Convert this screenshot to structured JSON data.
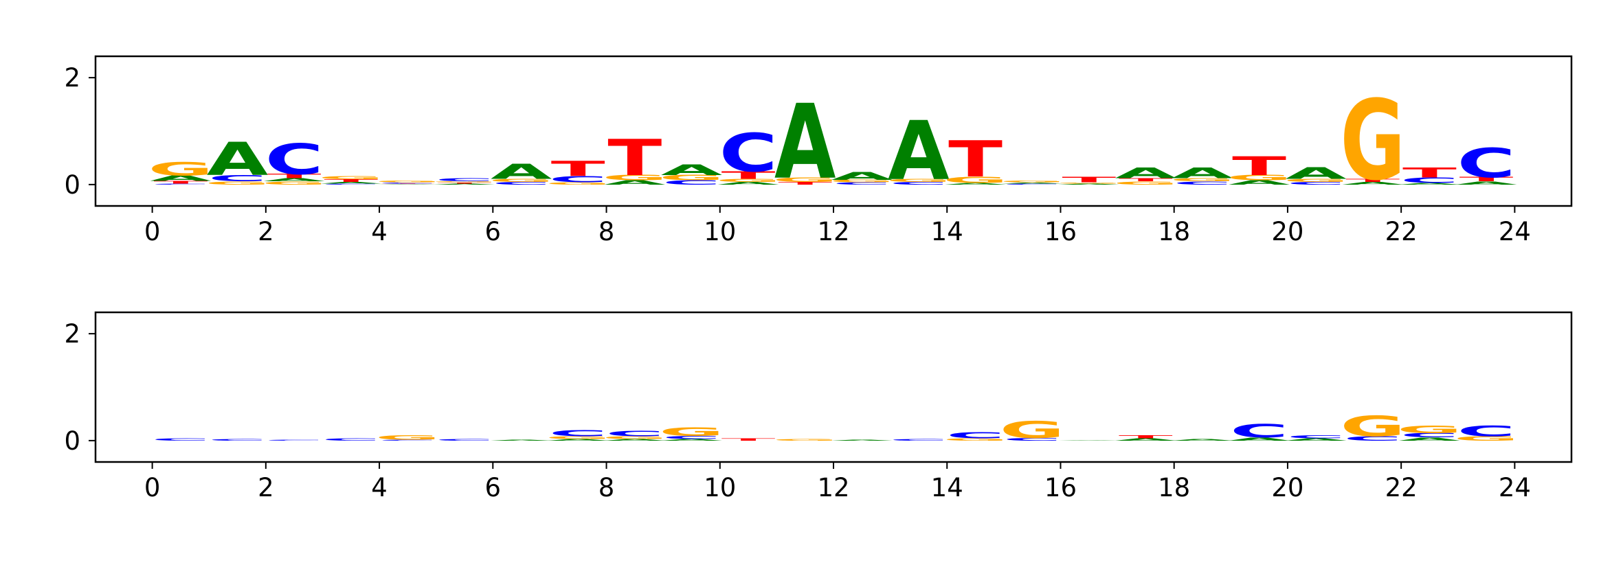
{
  "colors": {
    "A": "#008000",
    "C": "#0000ff",
    "G": "#ffa500",
    "T": "#ff0000"
  },
  "chart_data": [
    {
      "type": "sequence-logo",
      "x_ticks": [
        0,
        2,
        4,
        6,
        8,
        10,
        12,
        14,
        16,
        18,
        20,
        22,
        24
      ],
      "y_ticks": [
        0,
        2
      ],
      "xlim": [
        -1,
        25
      ],
      "ylim": [
        -0.4,
        2.4
      ],
      "grid": false,
      "positions": [
        {
          "x": 0.5,
          "letters": [
            [
              "C",
              0.02
            ],
            [
              "T",
              0.05
            ],
            [
              "A",
              0.1
            ],
            [
              "G",
              0.25
            ]
          ]
        },
        {
          "x": 1.5,
          "letters": [
            [
              "G",
              0.06
            ],
            [
              "C",
              0.12
            ],
            [
              "A",
              0.62
            ]
          ]
        },
        {
          "x": 2.5,
          "letters": [
            [
              "G",
              0.06
            ],
            [
              "A",
              0.06
            ],
            [
              "T",
              0.08
            ],
            [
              "C",
              0.58
            ]
          ]
        },
        {
          "x": 3.5,
          "letters": [
            [
              "C",
              0.02
            ],
            [
              "A",
              0.03
            ],
            [
              "T",
              0.05
            ],
            [
              "G",
              0.06
            ]
          ]
        },
        {
          "x": 4.5,
          "letters": [
            [
              "A",
              0.01
            ],
            [
              "T",
              0.01
            ],
            [
              "C",
              0.02
            ],
            [
              "G",
              0.03
            ]
          ]
        },
        {
          "x": 5.5,
          "letters": [
            [
              "A",
              0.02
            ],
            [
              "T",
              0.02
            ],
            [
              "G",
              0.02
            ],
            [
              "C",
              0.06
            ]
          ]
        },
        {
          "x": 6.5,
          "letters": [
            [
              "C",
              0.05
            ],
            [
              "G",
              0.06
            ],
            [
              "A",
              0.28
            ]
          ]
        },
        {
          "x": 7.5,
          "letters": [
            [
              "G",
              0.04
            ],
            [
              "C",
              0.12
            ],
            [
              "T",
              0.28
            ]
          ]
        },
        {
          "x": 8.5,
          "letters": [
            [
              "A",
              0.08
            ],
            [
              "G",
              0.1
            ],
            [
              "T",
              0.68
            ]
          ]
        },
        {
          "x": 9.5,
          "letters": [
            [
              "C",
              0.08
            ],
            [
              "G",
              0.1
            ],
            [
              "A",
              0.2
            ]
          ]
        },
        {
          "x": 10.5,
          "letters": [
            [
              "A",
              0.05
            ],
            [
              "G",
              0.06
            ],
            [
              "T",
              0.14
            ],
            [
              "C",
              0.72
            ]
          ]
        },
        {
          "x": 11.5,
          "letters": [
            [
              "T",
              0.05
            ],
            [
              "G",
              0.08
            ],
            [
              "A",
              1.4
            ]
          ]
        },
        {
          "x": 12.5,
          "letters": [
            [
              "C",
              0.04
            ],
            [
              "G",
              0.05
            ],
            [
              "A",
              0.15
            ]
          ]
        },
        {
          "x": 13.5,
          "letters": [
            [
              "C",
              0.05
            ],
            [
              "G",
              0.06
            ],
            [
              "A",
              1.1
            ]
          ]
        },
        {
          "x": 14.5,
          "letters": [
            [
              "A",
              0.03
            ],
            [
              "G",
              0.12
            ],
            [
              "T",
              0.68
            ]
          ]
        },
        {
          "x": 15.5,
          "letters": [
            [
              "C",
              0.02
            ],
            [
              "A",
              0.02
            ],
            [
              "G",
              0.03
            ]
          ]
        },
        {
          "x": 16.5,
          "letters": [
            [
              "A",
              0.02
            ],
            [
              "G",
              0.02
            ],
            [
              "T",
              0.1
            ]
          ]
        },
        {
          "x": 17.5,
          "letters": [
            [
              "G",
              0.06
            ],
            [
              "T",
              0.06
            ],
            [
              "A",
              0.2
            ]
          ]
        },
        {
          "x": 18.5,
          "letters": [
            [
              "C",
              0.06
            ],
            [
              "G",
              0.06
            ],
            [
              "A",
              0.2
            ]
          ]
        },
        {
          "x": 19.5,
          "letters": [
            [
              "A",
              0.08
            ],
            [
              "G",
              0.1
            ],
            [
              "T",
              0.35
            ]
          ]
        },
        {
          "x": 20.5,
          "letters": [
            [
              "C",
              0.05
            ],
            [
              "G",
              0.06
            ],
            [
              "A",
              0.22
            ]
          ]
        },
        {
          "x": 21.5,
          "letters": [
            [
              "A",
              0.05
            ],
            [
              "T",
              0.06
            ],
            [
              "G",
              1.5
            ]
          ]
        },
        {
          "x": 22.5,
          "letters": [
            [
              "A",
              0.03
            ],
            [
              "C",
              0.1
            ],
            [
              "T",
              0.18
            ]
          ]
        },
        {
          "x": 23.5,
          "letters": [
            [
              "A",
              0.06
            ],
            [
              "T",
              0.08
            ],
            [
              "C",
              0.55
            ]
          ]
        }
      ]
    },
    {
      "type": "sequence-logo",
      "x_ticks": [
        0,
        2,
        4,
        6,
        8,
        10,
        12,
        14,
        16,
        18,
        20,
        22,
        24
      ],
      "y_ticks": [
        0,
        2
      ],
      "xlim": [
        -1,
        25
      ],
      "ylim": [
        -0.4,
        2.4
      ],
      "grid": false,
      "positions": [
        {
          "x": 0.5,
          "letters": [
            [
              "C",
              0.04
            ]
          ]
        },
        {
          "x": 1.5,
          "letters": [
            [
              "C",
              0.03
            ]
          ]
        },
        {
          "x": 2.5,
          "letters": [
            [
              "C",
              0.02
            ]
          ]
        },
        {
          "x": 3.5,
          "letters": [
            [
              "C",
              0.04
            ]
          ]
        },
        {
          "x": 4.5,
          "letters": [
            [
              "C",
              0.02
            ],
            [
              "G",
              0.08
            ]
          ]
        },
        {
          "x": 5.5,
          "letters": [
            [
              "C",
              0.03
            ]
          ]
        },
        {
          "x": 6.5,
          "letters": [
            [
              "A",
              0.02
            ]
          ]
        },
        {
          "x": 7.5,
          "letters": [
            [
              "A",
              0.03
            ],
            [
              "G",
              0.05
            ],
            [
              "C",
              0.12
            ]
          ]
        },
        {
          "x": 8.5,
          "letters": [
            [
              "A",
              0.03
            ],
            [
              "G",
              0.05
            ],
            [
              "C",
              0.1
            ]
          ]
        },
        {
          "x": 9.5,
          "letters": [
            [
              "A",
              0.03
            ],
            [
              "C",
              0.06
            ],
            [
              "G",
              0.16
            ]
          ]
        },
        {
          "x": 10.5,
          "letters": [
            [
              "T",
              0.04
            ]
          ]
        },
        {
          "x": 11.5,
          "letters": [
            [
              "G",
              0.03
            ]
          ]
        },
        {
          "x": 12.5,
          "letters": [
            [
              "A",
              0.02
            ]
          ]
        },
        {
          "x": 13.5,
          "letters": [
            [
              "C",
              0.03
            ]
          ]
        },
        {
          "x": 14.5,
          "letters": [
            [
              "G",
              0.04
            ],
            [
              "C",
              0.12
            ]
          ]
        },
        {
          "x": 15.5,
          "letters": [
            [
              "C",
              0.05
            ],
            [
              "G",
              0.32
            ]
          ]
        },
        {
          "x": 16.5,
          "letters": [
            [
              "A",
              0.01
            ]
          ]
        },
        {
          "x": 17.5,
          "letters": [
            [
              "A",
              0.04
            ],
            [
              "T",
              0.06
            ]
          ]
        },
        {
          "x": 18.5,
          "letters": [
            [
              "A",
              0.03
            ]
          ]
        },
        {
          "x": 19.5,
          "letters": [
            [
              "A",
              0.06
            ],
            [
              "C",
              0.25
            ]
          ]
        },
        {
          "x": 20.5,
          "letters": [
            [
              "A",
              0.04
            ],
            [
              "C",
              0.06
            ]
          ]
        },
        {
          "x": 21.5,
          "letters": [
            [
              "C",
              0.08
            ],
            [
              "G",
              0.38
            ]
          ]
        },
        {
          "x": 22.5,
          "letters": [
            [
              "A",
              0.06
            ],
            [
              "C",
              0.08
            ],
            [
              "G",
              0.14
            ]
          ]
        },
        {
          "x": 23.5,
          "letters": [
            [
              "G",
              0.08
            ],
            [
              "C",
              0.2
            ]
          ]
        }
      ]
    }
  ]
}
